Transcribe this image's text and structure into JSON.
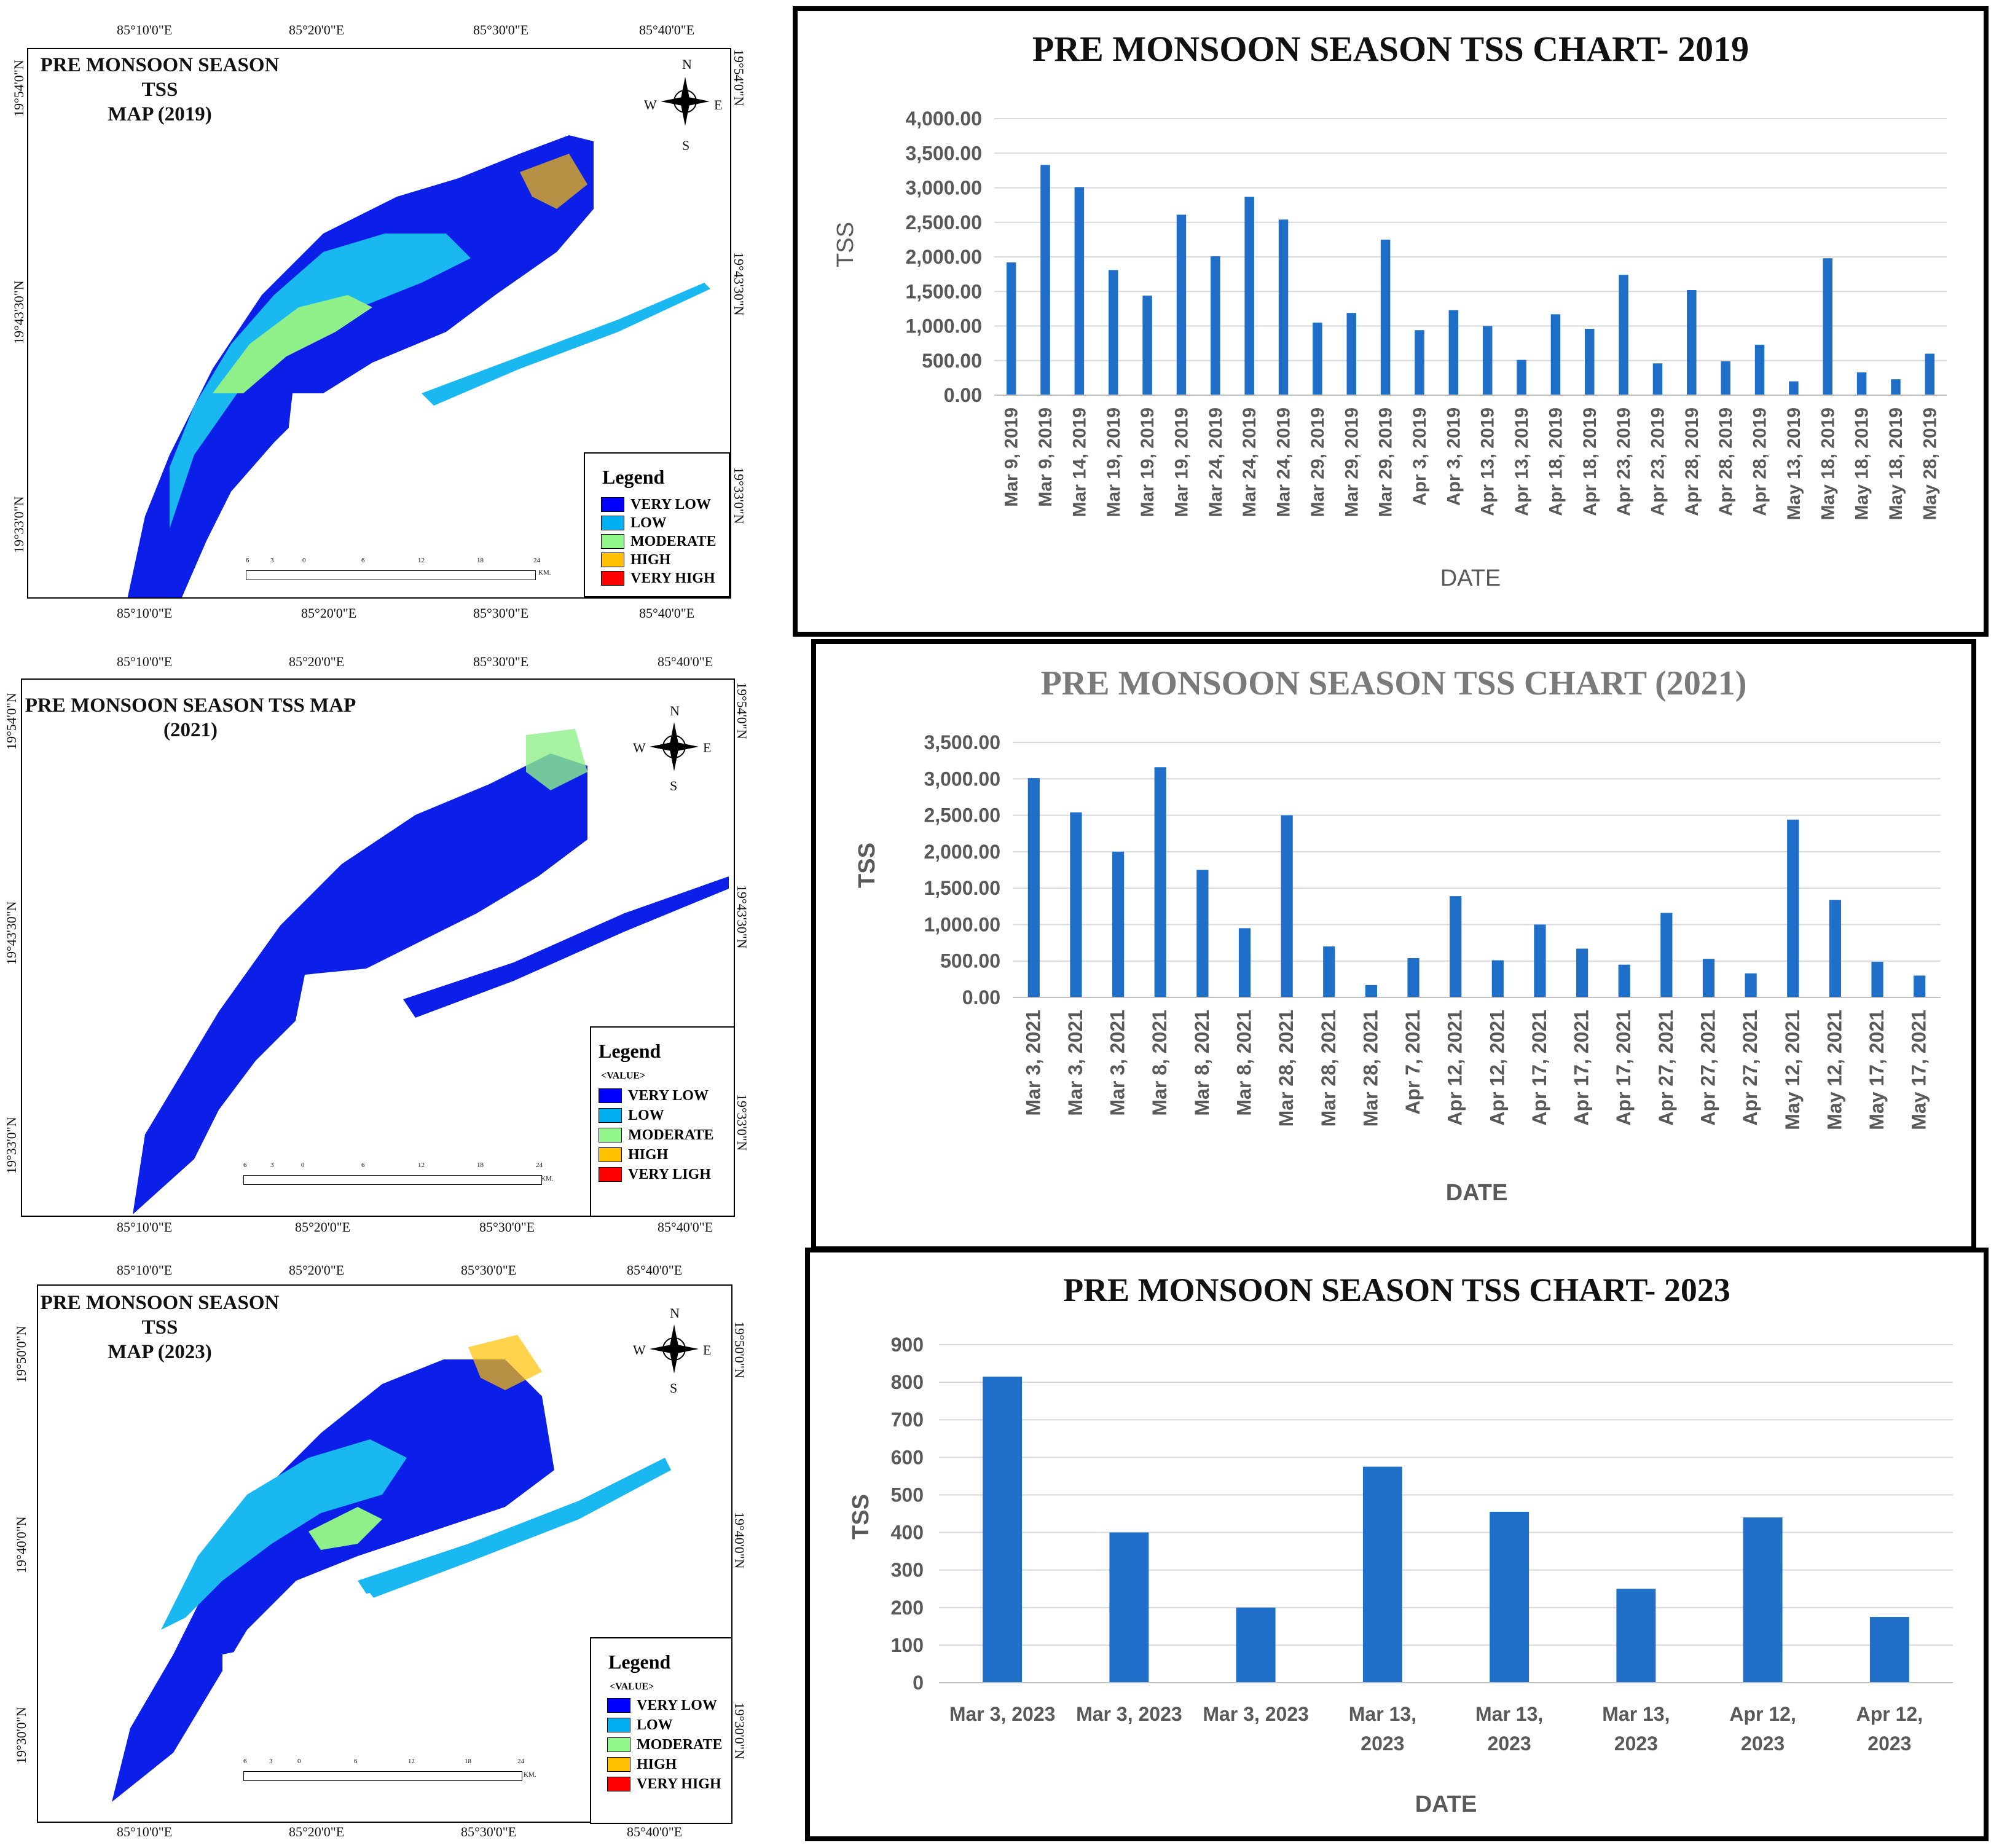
{
  "maps": [
    {
      "title_line1": "PRE MONSOON SEASON TSS",
      "title_line2": "MAP  (2019)",
      "top_lons": [
        "85°10'0\"E",
        "85°20'0\"E",
        "85°30'0\"E",
        "85°40'0\"E"
      ],
      "bottom_lons": [
        "85°10'0\"E",
        "85°20'0\"E",
        "85°30'0\"E",
        "85°40'0\"E"
      ],
      "left_lats": [
        "19°54'0\"N",
        "19°43'30\"N",
        "19°33'0\"N"
      ],
      "right_lats": [
        "19°54'0\"N",
        "19°43'30\"N",
        "19°33'0\"N"
      ],
      "legend_title": "Legend",
      "legend_sub": "",
      "legend_items": [
        "VERY LOW",
        "LOW",
        "MODERATE",
        "HIGH",
        "VERY HIGH"
      ],
      "scale_labels": [
        "6",
        "3",
        "0",
        "6",
        "12",
        "18",
        "24"
      ],
      "scale_unit": "KM."
    },
    {
      "title_line1": "PRE MONSOON SEASON TSS MAP",
      "title_line2": "(2021)",
      "top_lons": [
        "85°10'0\"E",
        "85°20'0\"E",
        "85°30'0\"E",
        "85°40'0\"E"
      ],
      "bottom_lons": [
        "85°10'0\"E",
        "85°20'0\"E",
        "85°30'0\"E",
        "85°40'0\"E"
      ],
      "left_lats": [
        "19°54'0\"N",
        "19°43'30\"N",
        "19°33'0\"N"
      ],
      "right_lats": [
        "19°54'0\"N",
        "19°43'30\"N",
        "19°33'0\"N"
      ],
      "legend_title": "Legend",
      "legend_sub": "<VALUE>",
      "legend_items": [
        "VERY LOW",
        "LOW",
        "MODERATE",
        "HIGH",
        "VERY LIGH"
      ],
      "scale_labels": [
        "6",
        "3",
        "0",
        "6",
        "12",
        "18",
        "24"
      ],
      "scale_unit": "KM."
    },
    {
      "title_line1": "PRE MONSOON SEASON TSS",
      "title_line2": "MAP (2023)",
      "top_lons": [
        "85°10'0\"E",
        "85°20'0\"E",
        "85°30'0\"E",
        "85°40'0\"E"
      ],
      "bottom_lons": [
        "85°10'0\"E",
        "85°20'0\"E",
        "85°30'0\"E",
        "85°40'0\"E"
      ],
      "left_lats": [
        "19°50'0\"N",
        "19°40'0\"N",
        "19°30'0\"N"
      ],
      "right_lats": [
        "19°50'0\"N",
        "19°40'0\"N",
        "19°30'0\"N"
      ],
      "legend_title": "Legend",
      "legend_sub": "<VALUE>",
      "legend_items": [
        "VERY LOW",
        "LOW",
        "MODERATE",
        "HIGH",
        "VERY HIGH"
      ],
      "scale_labels": [
        "6",
        "3",
        "0",
        "6",
        "12",
        "18",
        "24"
      ],
      "scale_unit": "KM."
    }
  ],
  "legend_colors": [
    "#0000ff",
    "#00b0f0",
    "#92f78a",
    "#ffc000",
    "#ff0000"
  ],
  "compass": {
    "n": "N",
    "s": "S",
    "e": "E",
    "w": "W"
  },
  "chart_data": [
    {
      "type": "bar",
      "title": "PRE MONSOON SEASON TSS CHART- 2019",
      "xlabel": "DATE",
      "ylabel": "TSS",
      "ylim": [
        0,
        4000
      ],
      "yticks": [
        "0.00",
        "500.00",
        "1,000.00",
        "1,500.00",
        "2,000.00",
        "2,500.00",
        "3,000.00",
        "3,500.00",
        "4,000.00"
      ],
      "categories": [
        "Mar 9, 2019",
        "Mar 9, 2019",
        "Mar 14, 2019",
        "Mar 19, 2019",
        "Mar 19, 2019",
        "Mar 19, 2019",
        "Mar 24, 2019",
        "Mar 24, 2019",
        "Mar 24, 2019",
        "Mar 29, 2019",
        "Mar 29, 2019",
        "Mar 29, 2019",
        "Apr 3, 2019",
        "Apr 3, 2019",
        "Apr 13, 2019",
        "Apr 13, 2019",
        "Apr 18, 2019",
        "Apr 18, 2019",
        "Apr 23, 2019",
        "Apr 23, 2019",
        "Apr 28, 2019",
        "Apr 28, 2019",
        "Apr 28, 2019",
        "May 13, 2019",
        "May 18, 2019",
        "May 18, 2019",
        "May 18, 2019",
        "May 28, 2019"
      ],
      "values": [
        1920,
        3330,
        3010,
        1810,
        1440,
        2610,
        2010,
        2870,
        2540,
        1050,
        1190,
        2250,
        940,
        1230,
        1000,
        510,
        1170,
        960,
        1740,
        460,
        1520,
        490,
        730,
        200,
        1980,
        330,
        230,
        600
      ],
      "color": "#1f6fc8"
    },
    {
      "type": "bar",
      "title": "PRE MONSOON SEASON TSS CHART (2021)",
      "xlabel": "DATE",
      "ylabel": "TSS",
      "ylim": [
        0,
        3500
      ],
      "yticks": [
        "0.00",
        "500.00",
        "1,000.00",
        "1,500.00",
        "2,000.00",
        "2,500.00",
        "3,000.00",
        "3,500.00"
      ],
      "categories": [
        "Mar 3, 2021",
        "Mar 3, 2021",
        "Mar 3, 2021",
        "Mar 8, 2021",
        "Mar 8, 2021",
        "Mar 8, 2021",
        "Mar 28, 2021",
        "Mar 28, 2021",
        "Mar 28, 2021",
        "Apr 7, 2021",
        "Apr 12, 2021",
        "Apr 12, 2021",
        "Apr 17, 2021",
        "Apr 17, 2021",
        "Apr 17, 2021",
        "Apr 27, 2021",
        "Apr 27, 2021",
        "Apr 27, 2021",
        "May 12, 2021",
        "May 12, 2021",
        "May 17, 2021",
        "May 17, 2021"
      ],
      "values": [
        3010,
        2540,
        2000,
        3160,
        1750,
        950,
        2500,
        700,
        170,
        540,
        1390,
        510,
        1000,
        670,
        450,
        1160,
        530,
        330,
        2440,
        1340,
        490,
        300
      ],
      "color": "#1f6fc8"
    },
    {
      "type": "bar",
      "title": "PRE MONSOON SEASON TSS CHART- 2023",
      "xlabel": "DATE",
      "ylabel": "TSS",
      "ylim": [
        0,
        900
      ],
      "yticks": [
        "0",
        "100",
        "200",
        "300",
        "400",
        "500",
        "600",
        "700",
        "800",
        "900"
      ],
      "categories": [
        "Mar 3, 2023",
        "Mar 3, 2023",
        "Mar 3, 2023",
        "Mar 13, 2023",
        "Mar 13, 2023",
        "Mar 13, 2023",
        "Apr 12, 2023",
        "Apr 12, 2023"
      ],
      "category_lines": [
        [
          "Mar 3, 2023"
        ],
        [
          "Mar 3, 2023"
        ],
        [
          "Mar 3, 2023"
        ],
        [
          "Mar 13,",
          "2023"
        ],
        [
          "Mar 13,",
          "2023"
        ],
        [
          "Mar 13,",
          "2023"
        ],
        [
          "Apr 12,",
          "2023"
        ],
        [
          "Apr 12,",
          "2023"
        ]
      ],
      "values": [
        815,
        400,
        200,
        575,
        455,
        250,
        440,
        175
      ],
      "color": "#1f6fc8"
    }
  ]
}
